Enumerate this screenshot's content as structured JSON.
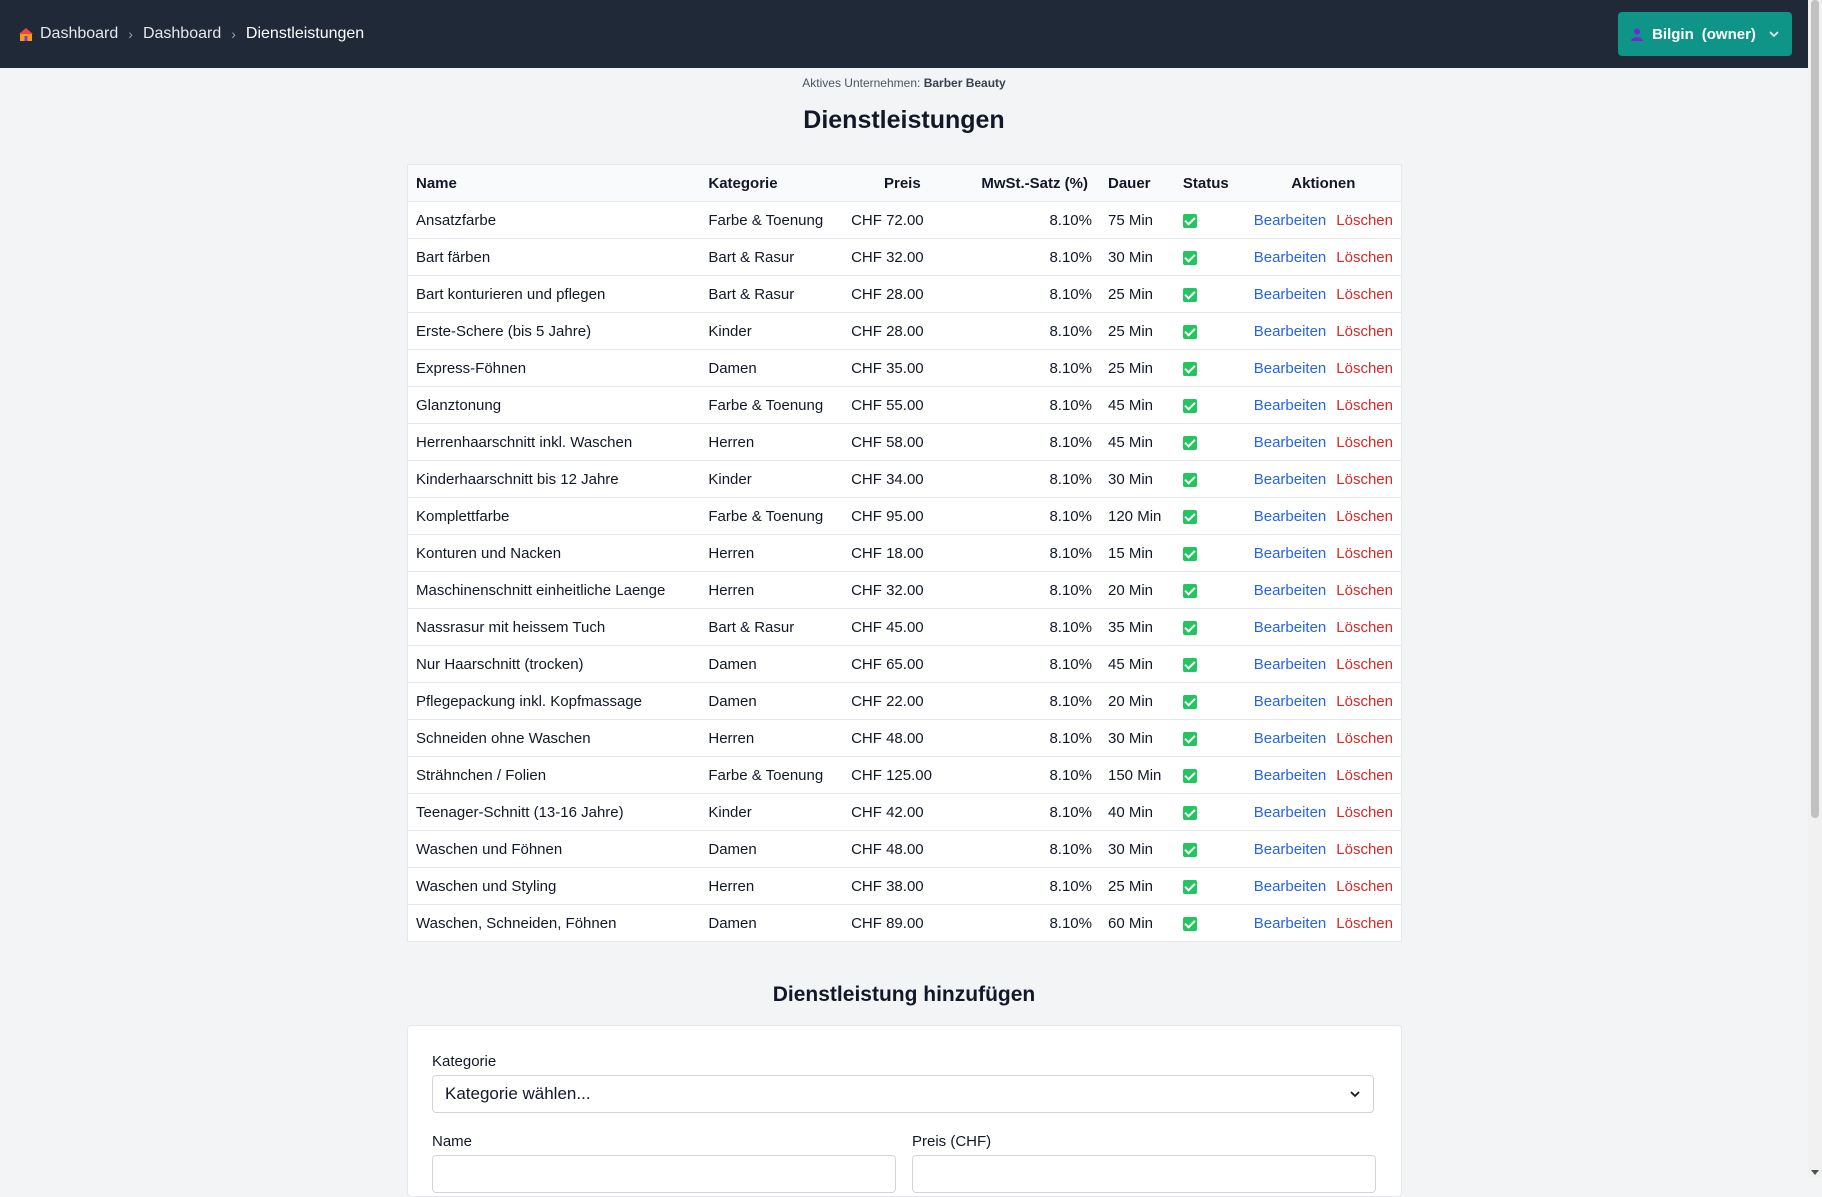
{
  "header": {
    "breadcrumb": [
      "Dashboard",
      "Dashboard",
      "Dienstleistungen"
    ],
    "user_name": "Bilgin",
    "user_role": "(owner)"
  },
  "active_company": {
    "label": "Aktives Unternehmen:",
    "name": "Barber Beauty"
  },
  "page_title": "Dienstleistungen",
  "table": {
    "columns": [
      "Name",
      "Kategorie",
      "Preis",
      "MwSt.-Satz (%)",
      "Dauer",
      "Status",
      "Aktionen"
    ],
    "edit_label": "Bearbeiten",
    "delete_label": "Löschen",
    "rows": [
      {
        "name": "Ansatzfarbe",
        "category": "Farbe & Toenung",
        "price": "CHF 72.00",
        "vat": "8.10%",
        "duration": "75 Min",
        "active": true
      },
      {
        "name": "Bart färben",
        "category": "Bart & Rasur",
        "price": "CHF 32.00",
        "vat": "8.10%",
        "duration": "30 Min",
        "active": true
      },
      {
        "name": "Bart konturieren und pflegen",
        "category": "Bart & Rasur",
        "price": "CHF 28.00",
        "vat": "8.10%",
        "duration": "25 Min",
        "active": true
      },
      {
        "name": "Erste-Schere (bis 5 Jahre)",
        "category": "Kinder",
        "price": "CHF 28.00",
        "vat": "8.10%",
        "duration": "25 Min",
        "active": true
      },
      {
        "name": "Express-Föhnen",
        "category": "Damen",
        "price": "CHF 35.00",
        "vat": "8.10%",
        "duration": "25 Min",
        "active": true
      },
      {
        "name": "Glanztonung",
        "category": "Farbe & Toenung",
        "price": "CHF 55.00",
        "vat": "8.10%",
        "duration": "45 Min",
        "active": true
      },
      {
        "name": "Herrenhaarschnitt inkl. Waschen",
        "category": "Herren",
        "price": "CHF 58.00",
        "vat": "8.10%",
        "duration": "45 Min",
        "active": true
      },
      {
        "name": "Kinderhaarschnitt bis 12 Jahre",
        "category": "Kinder",
        "price": "CHF 34.00",
        "vat": "8.10%",
        "duration": "30 Min",
        "active": true
      },
      {
        "name": "Komplettfarbe",
        "category": "Farbe & Toenung",
        "price": "CHF 95.00",
        "vat": "8.10%",
        "duration": "120 Min",
        "active": true
      },
      {
        "name": "Konturen und Nacken",
        "category": "Herren",
        "price": "CHF 18.00",
        "vat": "8.10%",
        "duration": "15 Min",
        "active": true
      },
      {
        "name": "Maschinenschnitt einheitliche Laenge",
        "category": "Herren",
        "price": "CHF 32.00",
        "vat": "8.10%",
        "duration": "20 Min",
        "active": true
      },
      {
        "name": "Nassrasur mit heissem Tuch",
        "category": "Bart & Rasur",
        "price": "CHF 45.00",
        "vat": "8.10%",
        "duration": "35 Min",
        "active": true
      },
      {
        "name": "Nur Haarschnitt (trocken)",
        "category": "Damen",
        "price": "CHF 65.00",
        "vat": "8.10%",
        "duration": "45 Min",
        "active": true
      },
      {
        "name": "Pflegepackung inkl. Kopfmassage",
        "category": "Damen",
        "price": "CHF 22.00",
        "vat": "8.10%",
        "duration": "20 Min",
        "active": true
      },
      {
        "name": "Schneiden ohne Waschen",
        "category": "Herren",
        "price": "CHF 48.00",
        "vat": "8.10%",
        "duration": "30 Min",
        "active": true
      },
      {
        "name": "Strähnchen / Folien",
        "category": "Farbe & Toenung",
        "price": "CHF 125.00",
        "vat": "8.10%",
        "duration": "150 Min",
        "active": true
      },
      {
        "name": "Teenager-Schnitt (13-16 Jahre)",
        "category": "Kinder",
        "price": "CHF 42.00",
        "vat": "8.10%",
        "duration": "40 Min",
        "active": true
      },
      {
        "name": "Waschen und Föhnen",
        "category": "Damen",
        "price": "CHF 48.00",
        "vat": "8.10%",
        "duration": "30 Min",
        "active": true
      },
      {
        "name": "Waschen und Styling",
        "category": "Herren",
        "price": "CHF 38.00",
        "vat": "8.10%",
        "duration": "25 Min",
        "active": true
      },
      {
        "name": "Waschen, Schneiden, Föhnen",
        "category": "Damen",
        "price": "CHF 89.00",
        "vat": "8.10%",
        "duration": "60 Min",
        "active": true
      }
    ]
  },
  "add_form": {
    "title": "Dienstleistung hinzufügen",
    "category_label": "Kategorie",
    "category_selected": "Kategorie wählen...",
    "name_label": "Name",
    "price_label": "Preis (CHF)"
  },
  "colors": {
    "topbar": "#1f2937",
    "user_button": "#0f9488",
    "edit_link": "#2563eb",
    "delete_link": "#dc2626",
    "status_active": "#22c55e"
  }
}
